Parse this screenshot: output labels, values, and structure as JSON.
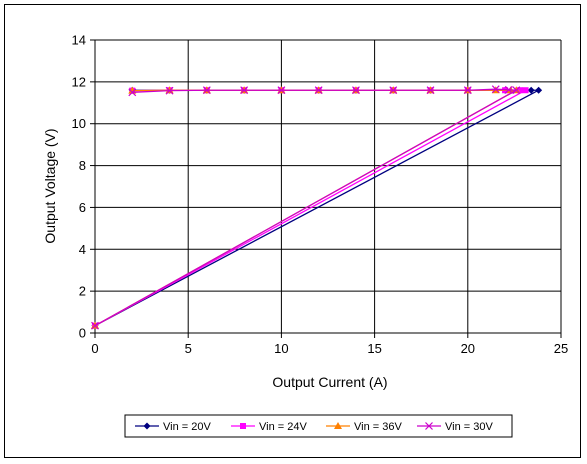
{
  "chart_data": {
    "type": "line",
    "title": "",
    "xlabel": "Output Current (A)",
    "ylabel": "Output Voltage (V)",
    "xlim": [
      0,
      25
    ],
    "ylim": [
      0,
      14
    ],
    "xticks": [
      "0",
      "5",
      "10",
      "15",
      "20",
      "25"
    ],
    "yticks": [
      "0",
      "2",
      "4",
      "6",
      "8",
      "10",
      "12",
      "14"
    ],
    "grid": true,
    "legend_position": "bottom",
    "series": [
      {
        "name": "Vin = 20V",
        "color": "#000080",
        "marker": "diamond",
        "x": [
          2.0,
          4.0,
          6.0,
          8.0,
          10.0,
          12.0,
          14.0,
          16.0,
          18.0,
          20.0,
          22.0,
          23.4,
          23.8,
          0.0
        ],
        "y": [
          11.6,
          11.6,
          11.6,
          11.6,
          11.6,
          11.6,
          11.6,
          11.6,
          11.6,
          11.6,
          11.6,
          11.6,
          11.6,
          0.35
        ]
      },
      {
        "name": "Vin = 24V",
        "color": "#FF00FF",
        "marker": "square",
        "x": [
          2.0,
          4.0,
          6.0,
          8.0,
          10.0,
          12.0,
          14.0,
          16.0,
          18.0,
          20.0,
          22.0,
          22.8,
          23.1,
          0.0
        ],
        "y": [
          11.58,
          11.6,
          11.6,
          11.6,
          11.6,
          11.6,
          11.6,
          11.6,
          11.6,
          11.6,
          11.6,
          11.6,
          11.6,
          0.35
        ]
      },
      {
        "name": "Vin = 36V",
        "color": "#FF8000",
        "marker": "triangle",
        "x": [
          2.0,
          4.0,
          6.0,
          8.0,
          10.0,
          12.0,
          14.0,
          16.0,
          18.0,
          20.0,
          21.5,
          22.3,
          22.6,
          0.0
        ],
        "y": [
          11.58,
          11.6,
          11.6,
          11.6,
          11.6,
          11.6,
          11.6,
          11.6,
          11.6,
          11.6,
          11.6,
          11.6,
          11.6,
          0.35
        ]
      },
      {
        "name": "Vin = 30V",
        "color": "#CC00CC",
        "marker": "x",
        "x": [
          2.0,
          4.0,
          6.0,
          8.0,
          10.0,
          12.0,
          14.0,
          16.0,
          18.0,
          20.0,
          21.5,
          22.2,
          22.6,
          0.0
        ],
        "y": [
          11.5,
          11.58,
          11.6,
          11.6,
          11.6,
          11.6,
          11.6,
          11.6,
          11.6,
          11.6,
          11.65,
          11.62,
          11.6,
          0.35
        ]
      }
    ]
  }
}
